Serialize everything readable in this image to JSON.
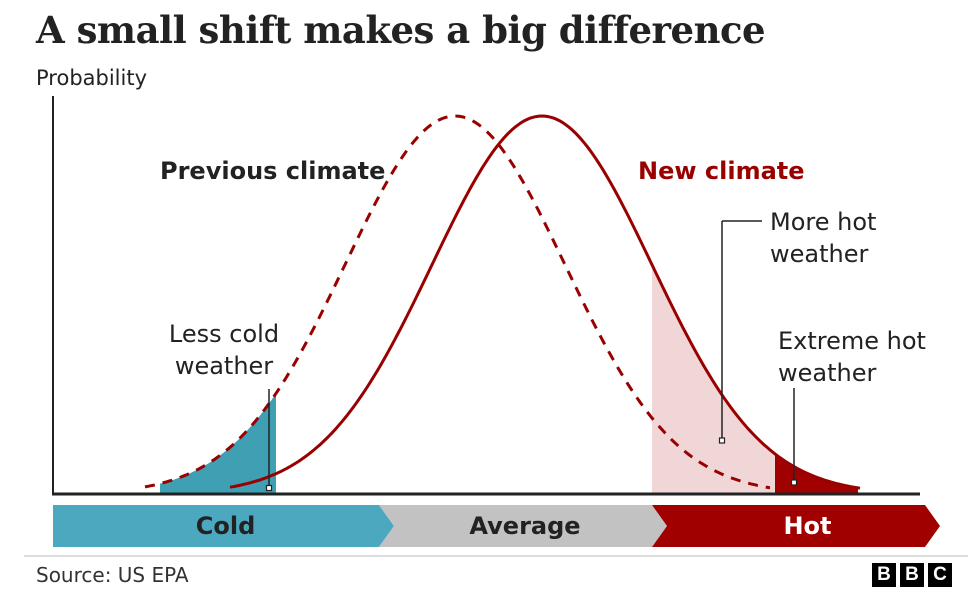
{
  "title": "A small shift makes a big difference",
  "y_axis_label": "Probability",
  "labels": {
    "previous_climate": "Previous climate",
    "new_climate": "New climate",
    "less_cold_line1": "Less cold",
    "less_cold_line2": "weather",
    "more_hot_line1": "More hot",
    "more_hot_line2": "weather",
    "extreme_hot_line1": "Extreme hot",
    "extreme_hot_line2": "weather"
  },
  "bands": {
    "cold": "Cold",
    "average": "Average",
    "hot": "Hot"
  },
  "source": "Source: US EPA",
  "logo": [
    "B",
    "B",
    "C"
  ],
  "colors": {
    "text": "#222222",
    "new_climate": "#990000",
    "cold_fill": "#3f9fb3",
    "cold_band": "#4ba8bf",
    "average_band": "#c2c2c2",
    "hot_band": "#a10000",
    "more_hot_fill": "#f0d6d6",
    "extreme_hot_fill": "#a10000"
  },
  "icons": {
    "logo": "bbc-logo"
  }
}
